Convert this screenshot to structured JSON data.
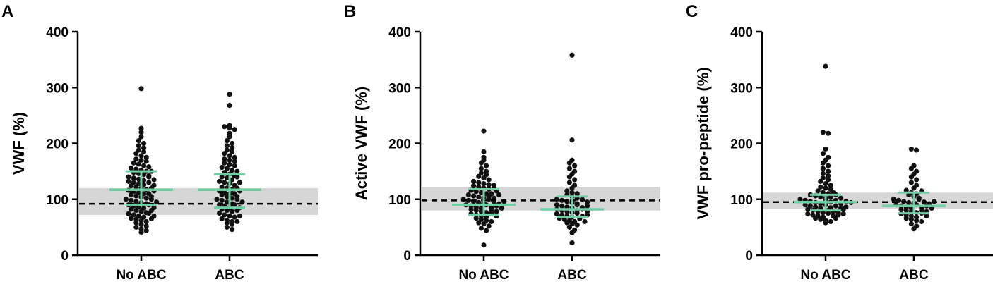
{
  "colors": {
    "points": "#111111",
    "summary": "#6fcfa4",
    "band": "#d6d6d6",
    "reference": "#000000"
  },
  "chart_data": [
    {
      "type": "scatter",
      "panel_label": "A",
      "ylabel": "VWF (%)",
      "categories": [
        "No ABC",
        "ABC"
      ],
      "ylim": [
        0,
        400
      ],
      "yticks": [
        0,
        100,
        200,
        300,
        400
      ],
      "reference_line": 92,
      "reference_band": [
        72,
        120
      ],
      "summary": [
        {
          "category": "No ABC",
          "median": 117,
          "iqr": [
            90,
            150
          ]
        },
        {
          "category": "ABC",
          "median": 117,
          "iqr": [
            85,
            145
          ]
        }
      ],
      "series": [
        {
          "category": "No ABC",
          "values": [
            298,
            227,
            220,
            212,
            205,
            200,
            196,
            192,
            188,
            185,
            182,
            178,
            175,
            172,
            170,
            168,
            165,
            163,
            160,
            158,
            156,
            154,
            152,
            150,
            148,
            146,
            144,
            142,
            140,
            138,
            136,
            134,
            132,
            130,
            128,
            126,
            124,
            122,
            120,
            118,
            116,
            114,
            112,
            110,
            108,
            106,
            104,
            102,
            100,
            98,
            96,
            94,
            92,
            90,
            88,
            86,
            84,
            82,
            80,
            78,
            76,
            74,
            72,
            70,
            68,
            66,
            64,
            62,
            60,
            58,
            55,
            52,
            50,
            47,
            44,
            41,
            120,
            110,
            100,
            95,
            130,
            140,
            150,
            135,
            125,
            115,
            105,
            90,
            85,
            80,
            75,
            70,
            65
          ]
        },
        {
          "category": "ABC",
          "values": [
            288,
            268,
            232,
            230,
            228,
            225,
            218,
            212,
            205,
            200,
            196,
            192,
            188,
            185,
            182,
            178,
            175,
            172,
            170,
            168,
            165,
            162,
            160,
            157,
            155,
            152,
            150,
            148,
            145,
            142,
            140,
            138,
            135,
            132,
            130,
            128,
            125,
            122,
            120,
            118,
            115,
            112,
            110,
            108,
            105,
            102,
            100,
            98,
            95,
            92,
            90,
            88,
            85,
            82,
            80,
            78,
            75,
            72,
            70,
            68,
            65,
            62,
            60,
            58,
            55,
            50,
            46,
            130,
            120,
            110,
            100,
            90,
            80,
            70,
            60,
            140,
            115,
            105,
            95,
            85
          ]
        }
      ]
    },
    {
      "type": "scatter",
      "panel_label": "B",
      "ylabel": "Active VWF (%)",
      "categories": [
        "No ABC",
        "ABC"
      ],
      "ylim": [
        0,
        400
      ],
      "yticks": [
        0,
        100,
        200,
        300,
        400
      ],
      "reference_line": 98,
      "reference_band": [
        80,
        122
      ],
      "summary": [
        {
          "category": "No ABC",
          "median": 90,
          "iqr": [
            72,
            118
          ]
        },
        {
          "category": "ABC",
          "median": 82,
          "iqr": [
            68,
            105
          ]
        }
      ],
      "series": [
        {
          "category": "No ABC",
          "values": [
            222,
            185,
            175,
            170,
            165,
            160,
            155,
            150,
            147,
            144,
            141,
            138,
            135,
            132,
            130,
            128,
            126,
            124,
            122,
            120,
            118,
            116,
            114,
            112,
            110,
            108,
            106,
            104,
            102,
            100,
            98,
            96,
            94,
            92,
            90,
            88,
            86,
            84,
            82,
            80,
            78,
            76,
            74,
            72,
            70,
            68,
            66,
            64,
            62,
            60,
            58,
            56,
            52,
            48,
            44,
            18,
            100,
            95,
            90,
            85,
            80,
            110,
            105,
            115,
            120,
            125,
            75,
            70,
            92,
            88,
            96,
            84,
            102,
            108,
            78
          ]
        },
        {
          "category": "ABC",
          "values": [
            358,
            206,
            170,
            165,
            160,
            155,
            150,
            145,
            140,
            135,
            130,
            125,
            120,
            115,
            112,
            110,
            108,
            105,
            102,
            100,
            98,
            96,
            94,
            92,
            90,
            88,
            86,
            84,
            82,
            80,
            78,
            76,
            74,
            72,
            70,
            68,
            66,
            64,
            62,
            60,
            58,
            56,
            54,
            50,
            45,
            40,
            22,
            100,
            95,
            90,
            85,
            80,
            75,
            70,
            65,
            60,
            88,
            82,
            78,
            72
          ]
        }
      ]
    },
    {
      "type": "scatter",
      "panel_label": "C",
      "ylabel": "VWF pro-peptide (%)",
      "categories": [
        "No ABC",
        "ABC"
      ],
      "ylim": [
        0,
        400
      ],
      "yticks": [
        0,
        100,
        200,
        300,
        400
      ],
      "reference_line": 95,
      "reference_band": [
        82,
        112
      ],
      "summary": [
        {
          "category": "No ABC",
          "median": 95,
          "iqr": [
            80,
            108
          ]
        },
        {
          "category": "ABC",
          "median": 88,
          "iqr": [
            75,
            112
          ]
        }
      ],
      "series": [
        {
          "category": "No ABC",
          "values": [
            338,
            220,
            218,
            190,
            182,
            175,
            170,
            165,
            160,
            155,
            150,
            146,
            142,
            138,
            135,
            132,
            128,
            125,
            122,
            120,
            118,
            115,
            112,
            110,
            108,
            106,
            104,
            102,
            100,
            98,
            96,
            94,
            92,
            90,
            88,
            86,
            84,
            82,
            80,
            78,
            76,
            74,
            72,
            70,
            68,
            66,
            64,
            62,
            60,
            58,
            100,
            95,
            90,
            85,
            80,
            75,
            70,
            98,
            92,
            88,
            84,
            78,
            72,
            104,
            108,
            112,
            96,
            86,
            76,
            66,
            102,
            94,
            82,
            74
          ]
        },
        {
          "category": "ABC",
          "values": [
            190,
            188,
            160,
            155,
            150,
            145,
            140,
            135,
            130,
            125,
            120,
            116,
            112,
            108,
            105,
            102,
            100,
            98,
            96,
            94,
            92,
            90,
            88,
            86,
            84,
            82,
            80,
            78,
            76,
            74,
            72,
            70,
            68,
            66,
            64,
            62,
            60,
            56,
            52,
            47,
            100,
            95,
            90,
            85,
            80,
            75,
            70,
            88,
            84,
            78,
            92,
            96,
            110,
            115
          ]
        }
      ]
    }
  ]
}
